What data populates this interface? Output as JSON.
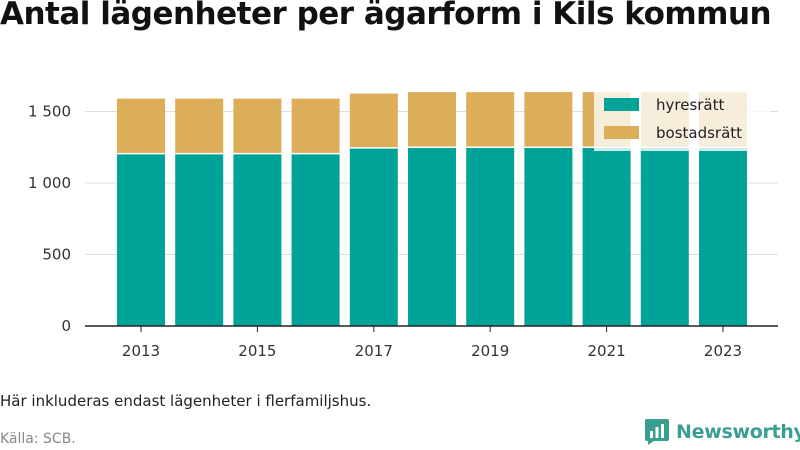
{
  "title": "Antal lägenheter per ägarform i Kils kommun",
  "note": "Här inkluderas endast lägenheter i flerfamiljshus.",
  "source": "Källa: SCB.",
  "brand": {
    "name": "Newsworthy",
    "logo_icon": "bar-chart-speech-icon",
    "color": "#3a9e93"
  },
  "chart_data": {
    "type": "bar",
    "stacked": true,
    "categories": [
      "2013",
      "2014",
      "2015",
      "2016",
      "2017",
      "2018",
      "2019",
      "2020",
      "2021",
      "2022",
      "2023"
    ],
    "x_tick_labels": [
      "2013",
      "",
      "2015",
      "",
      "2017",
      "",
      "2019",
      "",
      "2021",
      "",
      "2023"
    ],
    "series": [
      {
        "name": "hyresrätt",
        "color": "#00a398",
        "values": [
          1205,
          1205,
          1205,
          1205,
          1245,
          1250,
          1250,
          1250,
          1250,
          1250,
          1250
        ]
      },
      {
        "name": "bostadsrätt",
        "color": "#dcae5a",
        "values": [
          385,
          385,
          385,
          385,
          380,
          385,
          385,
          385,
          385,
          385,
          385
        ]
      }
    ],
    "y_ticks": [
      0,
      500,
      1000,
      1500
    ],
    "y_tick_labels": [
      "0",
      "500",
      "1 000",
      "1 500"
    ],
    "ylim": [
      0,
      1650
    ],
    "grid": true,
    "legend_position": "top-right"
  }
}
